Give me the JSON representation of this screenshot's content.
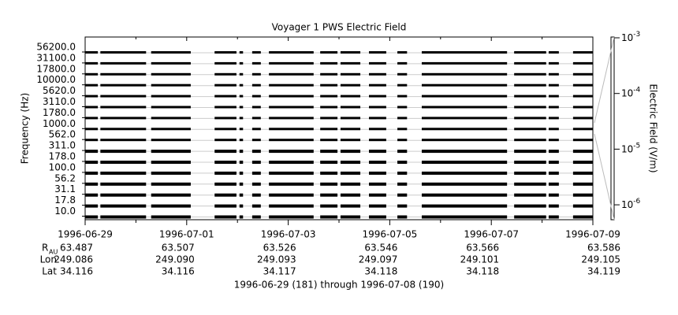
{
  "chart_data": {
    "type": "coverage",
    "title": "Voyager 1 PWS Electric Field",
    "y_label": "Frequency (Hz)",
    "y2_label": "Electric Field (V/m)",
    "footer": "1996-06-29 (181) through 1996-07-08 (190)",
    "categories": [
      "56200.0",
      "31100.0",
      "17800.0",
      "10000.0",
      "5620.0",
      "3110.0",
      "1780.0",
      "1000.0",
      "562.0",
      "311.0",
      "178.0",
      "100.0",
      "56.2",
      "31.1",
      "17.8",
      "10.0"
    ],
    "xlim": [
      0,
      10
    ],
    "xticks": [
      {
        "value": 0,
        "label": "1996-06-29"
      },
      {
        "value": 2,
        "label": "1996-07-01"
      },
      {
        "value": 4,
        "label": "1996-07-03"
      },
      {
        "value": 6,
        "label": "1996-07-05"
      },
      {
        "value": 8,
        "label": "1996-07-07"
      },
      {
        "value": 10,
        "label": "1996-07-09"
      }
    ],
    "xminorticks": [
      1,
      3,
      5,
      7,
      9
    ],
    "segments": [
      [
        0,
        0.25
      ],
      [
        0.3,
        1.2
      ],
      [
        1.3,
        2.08
      ],
      [
        2.55,
        2.98
      ],
      [
        3.04,
        3.11
      ],
      [
        3.29,
        3.46
      ],
      [
        3.62,
        4.5
      ],
      [
        4.63,
        4.97
      ],
      [
        5.03,
        5.42
      ],
      [
        5.59,
        5.93
      ],
      [
        6.15,
        6.34
      ],
      [
        6.63,
        8.31
      ],
      [
        8.45,
        9.08
      ],
      [
        9.13,
        9.33
      ],
      [
        9.61,
        10
      ]
    ],
    "color": "#000000",
    "y2log": true,
    "y2lim": [
      5.4e-07,
      0.001
    ],
    "y2ticks": [
      {
        "value": 0.001,
        "label": "10",
        "exponent": "-3"
      },
      {
        "value": 0.0001,
        "label": "10",
        "exponent": "-4"
      },
      {
        "value": 1e-05,
        "label": "10",
        "exponent": "-5"
      },
      {
        "value": 1e-06,
        "label": "10",
        "exponent": "-6"
      }
    ],
    "ephemeris": [
      {
        "label": "R",
        "sub": "AU",
        "values": [
          "63.487",
          "63.507",
          "63.526",
          "63.546",
          "63.566",
          "63.586"
        ]
      },
      {
        "label": "Lon",
        "values": [
          "249.086",
          "249.090",
          "249.093",
          "249.097",
          "249.101",
          "249.105"
        ]
      },
      {
        "label": "Lat",
        "values": [
          "34.116",
          "34.116",
          "34.117",
          "34.118",
          "34.118",
          "34.119"
        ]
      }
    ]
  }
}
